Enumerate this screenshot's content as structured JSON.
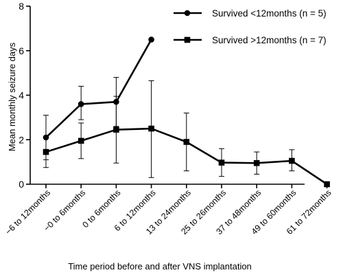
{
  "chart_data": {
    "type": "line",
    "xlabel": "Time period before and after VNS implantation",
    "ylabel": "Mean monthly seizure days",
    "ylim": [
      0,
      8
    ],
    "yticks": [
      0,
      2,
      4,
      6,
      8
    ],
    "categories": [
      "−6 to 12months",
      "−0 to 6months",
      "0 to 6months",
      "6 to 12months",
      "13 to 24months",
      "25 to 26months",
      "37 to 48months",
      "49 to 60months",
      "61 to 72months"
    ],
    "legend_position": "top-right",
    "series": [
      {
        "name": "Survived <12months (n = 5)",
        "marker": "circle",
        "values": [
          2.1,
          3.6,
          3.7,
          6.5,
          null,
          null,
          null,
          null,
          null
        ],
        "err_low": [
          1.1,
          2.9,
          2.6,
          null,
          null,
          null,
          null,
          null,
          null
        ],
        "err_high": [
          3.1,
          4.4,
          4.8,
          null,
          null,
          null,
          null,
          null,
          null
        ]
      },
      {
        "name": "Survived >12months (n = 7)",
        "marker": "square",
        "values": [
          1.45,
          1.95,
          2.45,
          2.5,
          1.9,
          0.97,
          0.95,
          1.05,
          0.0
        ],
        "err_low": [
          0.75,
          1.15,
          0.95,
          0.3,
          0.6,
          0.35,
          0.45,
          0.6,
          null
        ],
        "err_high": [
          2.15,
          2.75,
          3.95,
          4.65,
          3.2,
          1.6,
          1.45,
          1.55,
          null
        ]
      }
    ]
  }
}
